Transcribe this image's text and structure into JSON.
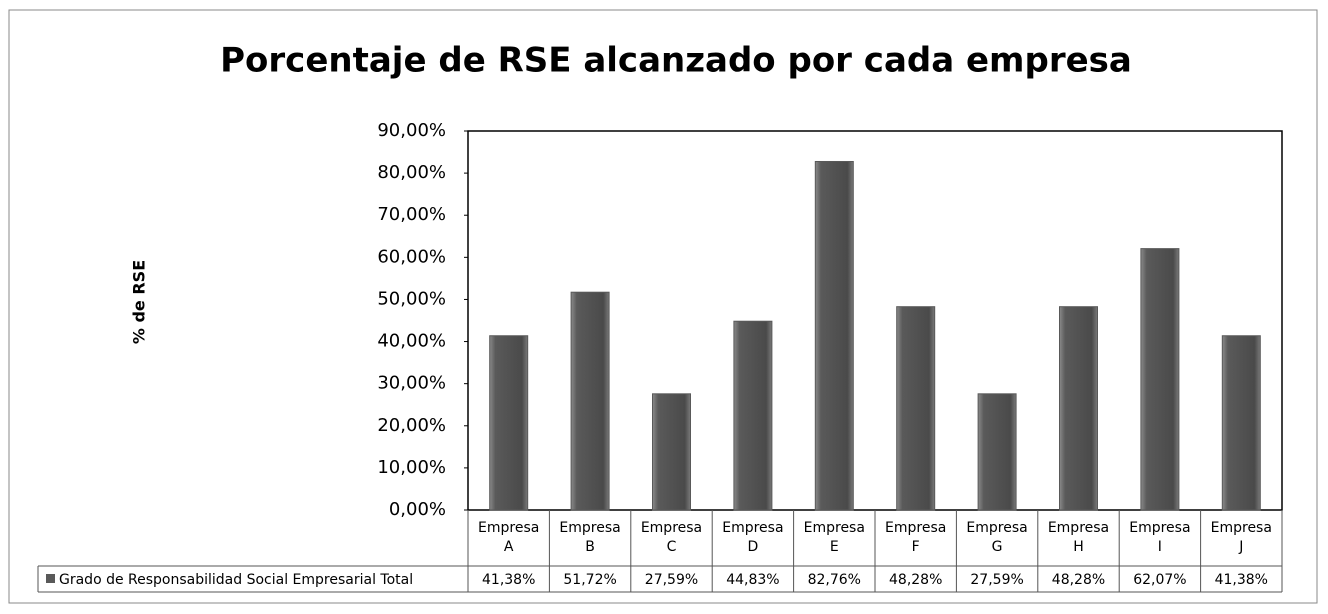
{
  "chart_data": {
    "type": "bar",
    "title": "Porcentaje de RSE alcanzado por cada empresa",
    "y_label": "% de RSE",
    "categories": [
      "Empresa A",
      "Empresa B",
      "Empresa C",
      "Empresa D",
      "Empresa E",
      "Empresa F",
      "Empresa G",
      "Empresa H",
      "Empresa I",
      "Empresa J"
    ],
    "series": [
      {
        "name": "Grado de Responsabilidad Social Empresarial Total",
        "color": "#595959",
        "values": [
          41.38,
          51.72,
          27.59,
          44.83,
          82.76,
          48.28,
          27.59,
          48.28,
          62.07,
          41.38
        ],
        "value_labels": [
          "41,38%",
          "51,72%",
          "27,59%",
          "44,83%",
          "82,76%",
          "48,28%",
          "27,59%",
          "48,28%",
          "62,07%",
          "41,38%"
        ]
      }
    ],
    "ylim": [
      0,
      90
    ],
    "yticks": [
      {
        "value": 0,
        "label": "0,00%"
      },
      {
        "value": 10,
        "label": "10,00%"
      },
      {
        "value": 20,
        "label": "20,00%"
      },
      {
        "value": 30,
        "label": "30,00%"
      },
      {
        "value": 40,
        "label": "40,00%"
      },
      {
        "value": 50,
        "label": "50,00%"
      },
      {
        "value": 60,
        "label": "60,00%"
      },
      {
        "value": 70,
        "label": "70,00%"
      },
      {
        "value": 80,
        "label": "80,00%"
      },
      {
        "value": 90,
        "label": "90,00%"
      }
    ],
    "grid": false
  }
}
